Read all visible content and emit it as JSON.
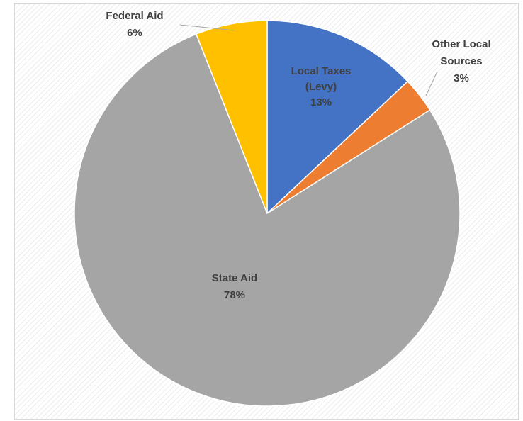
{
  "chart_data": {
    "type": "pie",
    "title": "",
    "slices": [
      {
        "label": "Local Taxes (Levy)",
        "value": 13,
        "value_label": "13%",
        "color": "#4472c4",
        "label_lines": [
          "Local Taxes",
          "(Levy)",
          "13%"
        ]
      },
      {
        "label": "Other Local Sources",
        "value": 3,
        "value_label": "3%",
        "color": "#ed7d31",
        "label_lines": [
          "Other Local",
          "Sources",
          "3%"
        ]
      },
      {
        "label": "State Aid",
        "value": 78,
        "value_label": "78%",
        "color": "#a5a5a5",
        "label_lines": [
          "State Aid",
          "78%"
        ]
      },
      {
        "label": "Federal Aid",
        "value": 6,
        "value_label": "6%",
        "color": "#ffc000",
        "label_lines": [
          "Federal Aid",
          "6%"
        ]
      }
    ],
    "start_angle": "12 o'clock",
    "direction": "clockwise",
    "legend": "none",
    "grid": false
  }
}
